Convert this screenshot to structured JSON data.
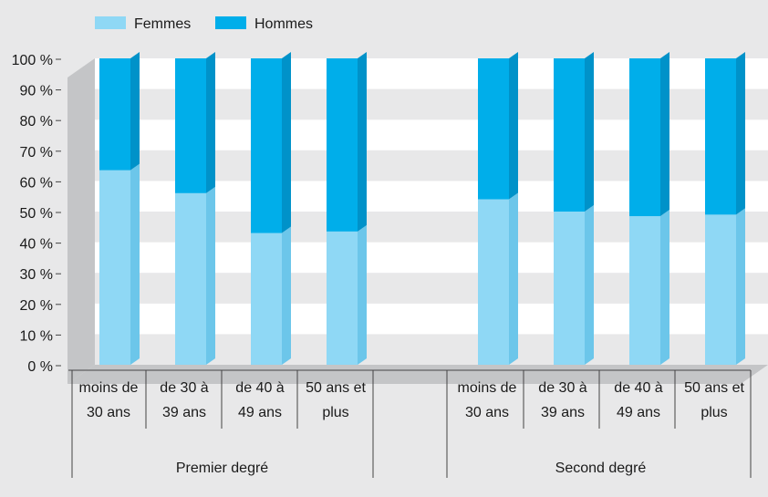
{
  "chart_data": {
    "type": "bar",
    "stacked": true,
    "percent": true,
    "legend": {
      "placement": "top-left",
      "entries": [
        "Femmes",
        "Hommes"
      ]
    },
    "series": [
      {
        "name": "Femmes",
        "color": "#8fd8f5",
        "values": [
          63.5,
          56,
          43,
          43.5,
          54,
          50,
          48.5,
          49
        ]
      },
      {
        "name": "Hommes",
        "color": "#00aeea",
        "values": [
          36.5,
          44,
          57,
          56.5,
          46,
          50,
          51.5,
          51
        ]
      }
    ],
    "categories": [
      [
        "moins de",
        "30 ans"
      ],
      [
        "de 30 à",
        "39 ans"
      ],
      [
        "de 40 à",
        "49 ans"
      ],
      [
        "50 ans et",
        "plus"
      ],
      [
        "moins de",
        "30 ans"
      ],
      [
        "de 30 à",
        "39 ans"
      ],
      [
        "de 40 à",
        "49 ans"
      ],
      [
        "50 ans et",
        "plus"
      ]
    ],
    "groups": [
      {
        "label": "Premier degré",
        "categories": [
          0,
          1,
          2,
          3
        ]
      },
      {
        "label": "Second degré",
        "categories": [
          4,
          5,
          6,
          7
        ]
      }
    ],
    "ylim": [
      0,
      100
    ],
    "yticks": [
      "0 %",
      "10 %",
      "20 %",
      "30 %",
      "40 %",
      "50 %",
      "60 %",
      "70 %",
      "80 %",
      "90 %",
      "100 %"
    ],
    "grid": "alternating horizontal bands",
    "title": "",
    "xlabel": "",
    "ylabel": ""
  }
}
